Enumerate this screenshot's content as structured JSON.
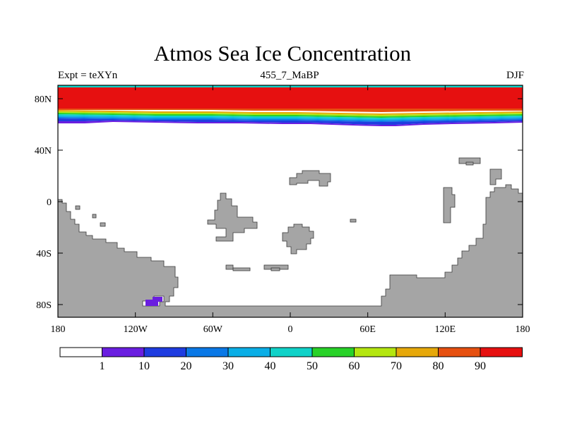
{
  "title": "Atmos Sea Ice Concentration",
  "subtitle_left": "Expt = teXYn",
  "subtitle_center": "455_7_MaBP",
  "subtitle_right": "DJF",
  "map": {
    "lon_ticks": [
      "180",
      "120W",
      "60W",
      "0",
      "60E",
      "120E",
      "180"
    ],
    "lat_ticks": [
      "80N",
      "40N",
      "0",
      "40S",
      "80S"
    ],
    "land_color": "#a5a5a5"
  },
  "colorbar": {
    "labels": [
      "1",
      "10",
      "20",
      "30",
      "40",
      "50",
      "60",
      "70",
      "80",
      "90"
    ],
    "colors": [
      "#ffffff",
      "#6a1ee0",
      "#1e3ce0",
      "#0a78e6",
      "#0aaee6",
      "#10d2c8",
      "#28d228",
      "#b4e610",
      "#e6a80a",
      "#e65010",
      "#e61010"
    ]
  }
}
